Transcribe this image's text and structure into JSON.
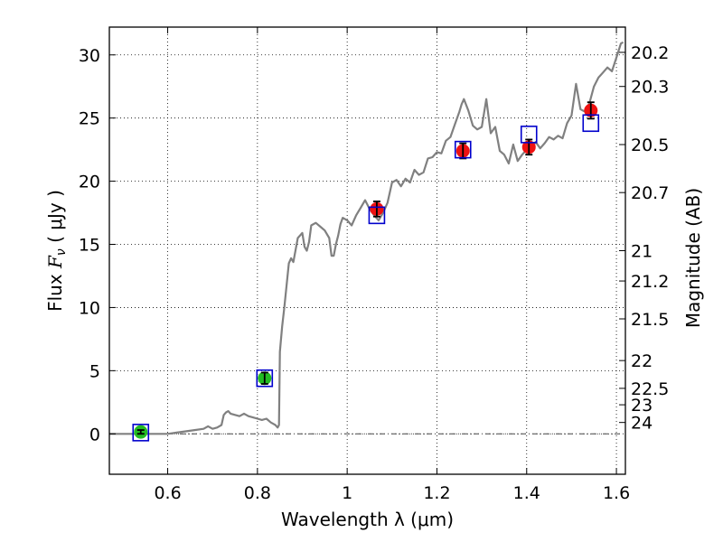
{
  "chart_data": {
    "type": "scatter",
    "xlabel": "Wavelength  λ (μm)",
    "ylabel": "Flux  F_ν  ( μJy )",
    "ylabel_parts": {
      "prefix": "Flux  ",
      "symbol": "F",
      "subscript": "ν",
      "suffix": "  (  μJy )"
    },
    "y2label": "Magnitude (AB)",
    "xlim": [
      0.47,
      1.62
    ],
    "ylim": [
      -3.2,
      32.2
    ],
    "grid": true,
    "x_ticks": [
      0.6,
      0.8,
      1.0,
      1.2,
      1.4,
      1.6
    ],
    "x_tick_labels": [
      "0.6",
      "0.8",
      "1",
      "1.2",
      "1.4",
      "1.6"
    ],
    "y_ticks": [
      0,
      5,
      10,
      15,
      20,
      25,
      30
    ],
    "y_tick_labels": [
      "0",
      "5",
      "10",
      "15",
      "20",
      "25",
      "30"
    ],
    "y2_ticks": [
      {
        "label": "20.2",
        "flux": 30.2
      },
      {
        "label": "20.3",
        "flux": 27.5
      },
      {
        "label": "20.5",
        "flux": 22.9
      },
      {
        "label": "20.7",
        "flux": 19.1
      },
      {
        "label": "21",
        "flux": 14.5
      },
      {
        "label": "21.2",
        "flux": 12.1
      },
      {
        "label": "21.5",
        "flux": 9.1
      },
      {
        "label": "22",
        "flux": 5.8
      },
      {
        "label": "22.5",
        "flux": 3.6
      },
      {
        "label": "23",
        "flux": 2.3
      },
      {
        "label": "24",
        "flux": 0.9
      }
    ],
    "series": [
      {
        "type": "line",
        "color": "#808080",
        "x": [
          0.47,
          0.55,
          0.6,
          0.62,
          0.64,
          0.66,
          0.68,
          0.69,
          0.7,
          0.71,
          0.72,
          0.725,
          0.73,
          0.735,
          0.74,
          0.75,
          0.76,
          0.77,
          0.78,
          0.79,
          0.8,
          0.81,
          0.82,
          0.83,
          0.835,
          0.84,
          0.845,
          0.848,
          0.85,
          0.855,
          0.86,
          0.87,
          0.875,
          0.88,
          0.89,
          0.9,
          0.905,
          0.91,
          0.915,
          0.92,
          0.93,
          0.94,
          0.95,
          0.96,
          0.965,
          0.97,
          0.975,
          0.98,
          0.985,
          0.99,
          1.0,
          1.01,
          1.02,
          1.03,
          1.04,
          1.05,
          1.06,
          1.07,
          1.08,
          1.09,
          1.1,
          1.11,
          1.12,
          1.13,
          1.14,
          1.15,
          1.16,
          1.17,
          1.18,
          1.19,
          1.2,
          1.21,
          1.22,
          1.23,
          1.24,
          1.25,
          1.255,
          1.26,
          1.27,
          1.28,
          1.29,
          1.3,
          1.31,
          1.32,
          1.33,
          1.34,
          1.35,
          1.36,
          1.37,
          1.38,
          1.39,
          1.4,
          1.41,
          1.42,
          1.43,
          1.44,
          1.45,
          1.46,
          1.47,
          1.48,
          1.49,
          1.5,
          1.51,
          1.52,
          1.53,
          1.535,
          1.54,
          1.55,
          1.56,
          1.57,
          1.58,
          1.59,
          1.6,
          1.61,
          1.615
        ],
        "y": [
          0.0,
          0.0,
          0.0,
          0.1,
          0.2,
          0.3,
          0.4,
          0.6,
          0.4,
          0.5,
          0.7,
          1.5,
          1.7,
          1.8,
          1.6,
          1.5,
          1.4,
          1.6,
          1.4,
          1.3,
          1.2,
          1.1,
          1.2,
          0.9,
          0.8,
          0.7,
          0.5,
          0.7,
          6.5,
          8.5,
          10.0,
          13.5,
          13.9,
          13.6,
          15.5,
          15.9,
          14.8,
          14.5,
          15.2,
          16.5,
          16.7,
          16.4,
          16.1,
          15.5,
          14.1,
          14.1,
          15.0,
          15.7,
          16.6,
          17.1,
          16.9,
          16.5,
          17.3,
          17.9,
          18.5,
          17.8,
          17.3,
          16.9,
          17.5,
          18.3,
          19.9,
          20.1,
          19.6,
          20.2,
          19.9,
          20.9,
          20.5,
          20.7,
          21.8,
          21.9,
          22.3,
          22.2,
          23.2,
          23.5,
          24.5,
          25.5,
          26.1,
          26.5,
          25.6,
          24.4,
          24.1,
          24.3,
          26.5,
          23.8,
          24.3,
          22.4,
          22.1,
          21.4,
          22.9,
          21.6,
          22.1,
          22.5,
          22.6,
          23.1,
          22.6,
          23.0,
          23.5,
          23.3,
          23.6,
          23.4,
          24.6,
          25.2,
          27.7,
          25.7,
          25.5,
          25.8,
          26.2,
          27.5,
          28.2,
          28.6,
          29.0,
          28.7,
          29.8,
          30.9,
          31.0
        ]
      },
      {
        "type": "markers",
        "marker": "circle",
        "color": "#22bb22",
        "x": [
          0.54,
          0.816
        ],
        "y": [
          0.15,
          4.4
        ],
        "yerr": [
          0.15,
          0.45
        ]
      },
      {
        "type": "markers",
        "marker": "circle",
        "color": "#ee1111",
        "x": [
          1.066,
          1.258,
          1.405,
          1.543
        ],
        "y": [
          17.8,
          22.4,
          22.7,
          25.6
        ],
        "yerr": [
          0.6,
          0.6,
          0.6,
          0.65
        ]
      },
      {
        "type": "markers",
        "marker": "open-square",
        "color": "#0000cc",
        "x": [
          0.54,
          0.816,
          1.066,
          1.258,
          1.405,
          1.543
        ],
        "y": [
          0.1,
          4.4,
          17.3,
          22.5,
          23.7,
          24.6
        ]
      }
    ],
    "reference_line": {
      "y": 0,
      "style": "dash-dot",
      "color": "#444444"
    }
  }
}
